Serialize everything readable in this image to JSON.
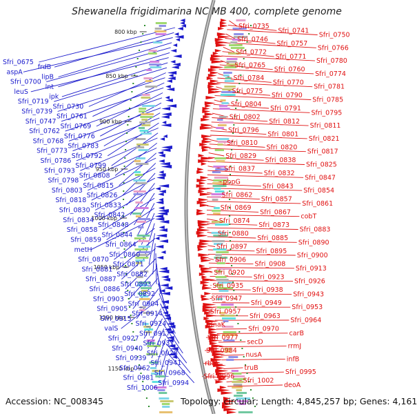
{
  "title": "Shewanella frigidimarina NCIMB 400, complete genome",
  "accession": "Accession: NC_008345",
  "topology": "Topology: circular; Length: 4,845,257 bp; Genes: 4,161",
  "colors": {
    "reverse": "#1a1acc",
    "forward": "#e01010",
    "backbone": "#888888",
    "tick": "#2a8a2a"
  },
  "ticks": [
    "800 kbp",
    "850 kbp",
    "900 kbp",
    "950 kbp",
    "1000 kbp",
    "1050 kbp",
    "1100 kbp",
    "1150 kbp"
  ],
  "left_labels": [
    [
      "Sfri_0675",
      "frdB",
      "aspA",
      "lipB",
      "Sfri_0700",
      "lnt",
      "leuS",
      "ipk",
      "Sfri_0719",
      "Sfri_0730"
    ],
    [
      "Sfri_0739",
      "Sfri_0761",
      "Sfri_0747",
      "Sfri_0769",
      "Sfri_0762",
      "Sfri_0776",
      "Sfri_0768",
      "Sfri_0783",
      "Sfri_0773",
      "Sfri_0792"
    ],
    [
      "Sfri_0786",
      "Sfri_0799",
      "Sfri_0793",
      "Sfri_0808",
      "Sfri_0798",
      "Sfri_0815",
      "Sfri_0803",
      "Sfri_0826",
      "Sfri_0818",
      "Sfri_0833"
    ],
    [
      "Sfri_0830",
      "Sfri_0842",
      "Sfri_0834",
      "Sfri_0848",
      "Sfri_0858",
      "Sfri_0844",
      "Sfri_0859",
      "Sfri_0864",
      "metH",
      "Sfri_0860"
    ],
    [
      "Sfri_0870",
      "Sfri_0871",
      "Sfri_0881",
      "Sfri_0882",
      "Sfri_0887",
      "Sfri_0893",
      "Sfri_0886",
      "Sfri_0892",
      "Sfri_0903",
      "Sfri_0904"
    ],
    [
      "Sfri_0905",
      "Sfri_0914",
      "Sfri_0915",
      "Sfri_0924",
      "valS",
      "Sfri_0917",
      "Sfri_0927",
      "Sfri_0937",
      "Sfri_0940",
      "Sfri_0928"
    ],
    [
      "Sfri_0939",
      "Sfri_0941",
      "Sfri_0962",
      "Sfri_0968",
      "Sfri_0981",
      "Sfri_0994",
      "Sfri_1006"
    ]
  ],
  "right_labels": [
    [
      "Sfri_0735",
      "Sfri_0741",
      "Sfri_0750",
      "Sfri_0746",
      "Sfri_0757",
      "Sfri_0766",
      "Sfri_0772",
      "Sfri_0771",
      "Sfri_0780",
      "Sfri_0765"
    ],
    [
      "Sfri_0760",
      "Sfri_0774",
      "Sfri_0784",
      "Sfri_0770",
      "Sfri_0781",
      "Sfri_0775",
      "Sfri_0790",
      "Sfri_0785",
      "Sfri_0804",
      "Sfri_0791"
    ],
    [
      "Sfri_0795",
      "Sfri_0802",
      "Sfri_0812",
      "Sfri_0811",
      "Sfri_0796",
      "Sfri_0801",
      "Sfri_0821",
      "Sfri_0810",
      "Sfri_0820",
      "Sfri_0817"
    ],
    [
      "Sfri_0829",
      "Sfri_0838",
      "Sfri_0825",
      "Sfri_0837",
      "Sfri_0832",
      "Sfri_0847",
      "pbpG",
      "Sfri_0843",
      "Sfri_0854",
      "Sfri_0862"
    ],
    [
      "Sfri_0857",
      "Sfri_0861",
      "Sfri_0869",
      "Sfri_0867",
      "cobT",
      "Sfri_0874",
      "Sfri_0873",
      "Sfri_0883",
      "Sfri_0880",
      "Sfri_0885"
    ],
    [
      "Sfri_0890",
      "Sfri_0897",
      "Sfri_0895",
      "Sfri_0900",
      "Sfri_0906",
      "Sfri_0908",
      "Sfri_0913",
      "Sfri_0920",
      "Sfri_0923",
      "Sfri_0926"
    ],
    [
      "Sfri_0935",
      "Sfri_0938",
      "Sfri_0943",
      "Sfri_0947",
      "Sfri_0949",
      "Sfri_0953",
      "Sfri_0957",
      "Sfri_0963",
      "Sfri_0964",
      "dnaK"
    ],
    [
      "Sfri_0970",
      "carB",
      "Sfri_0977",
      "secD",
      "rrmJ",
      "Sfri_0984",
      "nusA",
      "infB",
      "rbfA",
      "truB"
    ],
    [
      "Sfri_0995",
      "Sfri_0996",
      "Sfri_1002",
      "deoA"
    ]
  ]
}
